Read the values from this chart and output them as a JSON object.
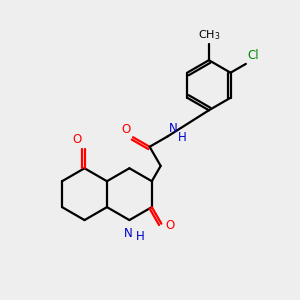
{
  "bg_color": "#eeeeee",
  "bond_color": "#000000",
  "n_color": "#0000cc",
  "o_color": "#ff0000",
  "cl_color": "#008800",
  "line_width": 1.6,
  "font_size": 8.5,
  "xlim": [
    0,
    10
  ],
  "ylim": [
    0,
    10
  ]
}
